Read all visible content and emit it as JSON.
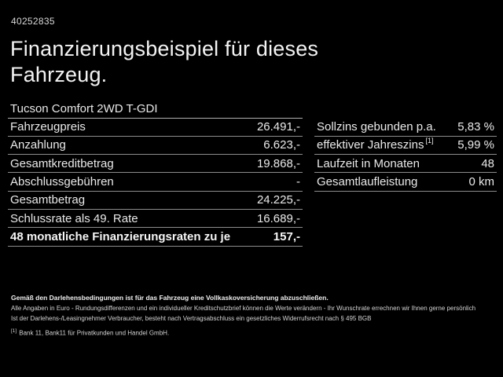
{
  "colors": {
    "background": "#000000",
    "text": "#e9e9e9",
    "separator": "#8d8d8d",
    "subtitle_separator": "#b2b2b2"
  },
  "header": {
    "vehicle_id": "40252835",
    "title": "Finanzierungsbeispiel für dieses\nFahrzeug."
  },
  "vehicle": {
    "model": "Tucson Comfort 2WD T-GDI"
  },
  "finance_table": {
    "rows": [
      {
        "label": "Fahrzeugpreis",
        "value": "26.491,-"
      },
      {
        "label": "Anzahlung",
        "value": "6.623,-"
      },
      {
        "label": "Gesamtkreditbetrag",
        "value": "19.868,-"
      },
      {
        "label": "Abschlussgebühren",
        "value": "-"
      },
      {
        "label": "Gesamtbetrag",
        "value": "24.225,-"
      },
      {
        "label": "Schlussrate als 49. Rate",
        "value": "16.689,-"
      },
      {
        "label": "48 monatliche Finanzierungsraten zu je",
        "value": "157,-",
        "bold": true
      }
    ]
  },
  "conditions_table": {
    "rows": [
      {
        "label": "Sollzins gebunden p.a.",
        "value": "5,83 %"
      },
      {
        "label": "effektiver Jahreszins",
        "sup": "[1]",
        "value": "5,99 %"
      },
      {
        "label": "Laufzeit in Monaten",
        "value": "48"
      },
      {
        "label": "Gesamtlaufleistung",
        "value": "0 km"
      }
    ]
  },
  "footer": {
    "bold_line": "Gemäß den Darlehensbedingungen ist für das Fahrzeug eine Vollkaskoversicherung abzuschließen.",
    "lines": [
      "Alle Angaben in Euro - Rundungsdifferenzen und ein individueller Kreditschutzbrief können die Werte verändern - Ihr Wunschrate errechnen wir Ihnen gerne persönlich",
      "Ist der Darlehens-/Leasingnehmer Verbraucher, besteht nach Vertragsabschluss ein gesetzliches Widerrufsrecht nach § 495 BGB"
    ],
    "footnote": {
      "marker": "[1]",
      "text": "Bank 11, Bank11 für Privatkunden und Handel GmbH."
    }
  }
}
